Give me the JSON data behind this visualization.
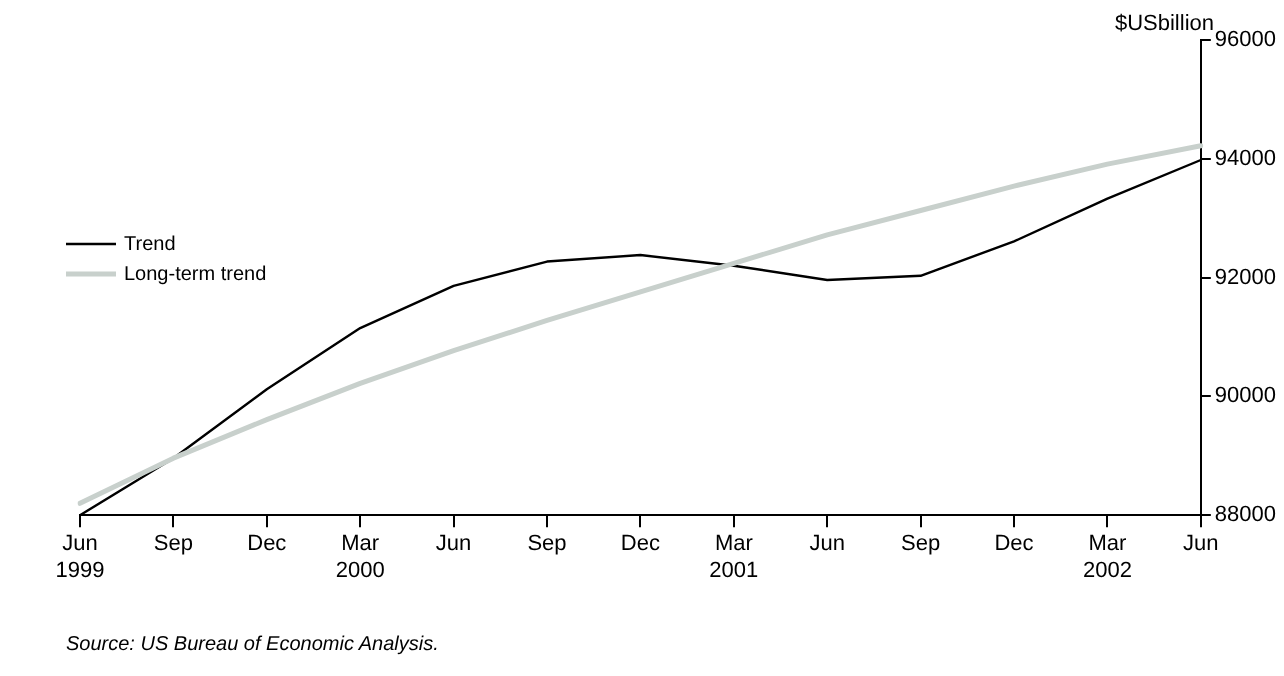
{
  "chart_data": {
    "type": "line",
    "categories": [
      "Jun\n1999",
      "Sep",
      "Dec",
      "Mar\n2000",
      "Jun",
      "Sep",
      "Dec",
      "Mar\n2001",
      "Jun",
      "Sep",
      "Dec",
      "Mar\n2002",
      "Jun"
    ],
    "ylabel": "$USbillion",
    "ylim": [
      88000,
      96000
    ],
    "yticks": [
      88000,
      90000,
      92000,
      94000,
      96000
    ],
    "series": [
      {
        "name": "Trend",
        "color": "#000000",
        "values": [
          88000,
          88960,
          90120,
          91150,
          91860,
          92270,
          92380,
          92200,
          91960,
          92030,
          92610,
          93330,
          93980
        ]
      },
      {
        "name": "Long-term trend",
        "color": "#c8d0cc",
        "values": [
          88200,
          88960,
          89610,
          90220,
          90770,
          91280,
          91760,
          92240,
          92720,
          93130,
          93540,
          93910,
          94220
        ]
      }
    ],
    "annotations": [
      "Source: US Bureau of Economic Analysis."
    ],
    "grid": false,
    "legend": "left",
    "marker": "none",
    "line_style": "solid"
  }
}
